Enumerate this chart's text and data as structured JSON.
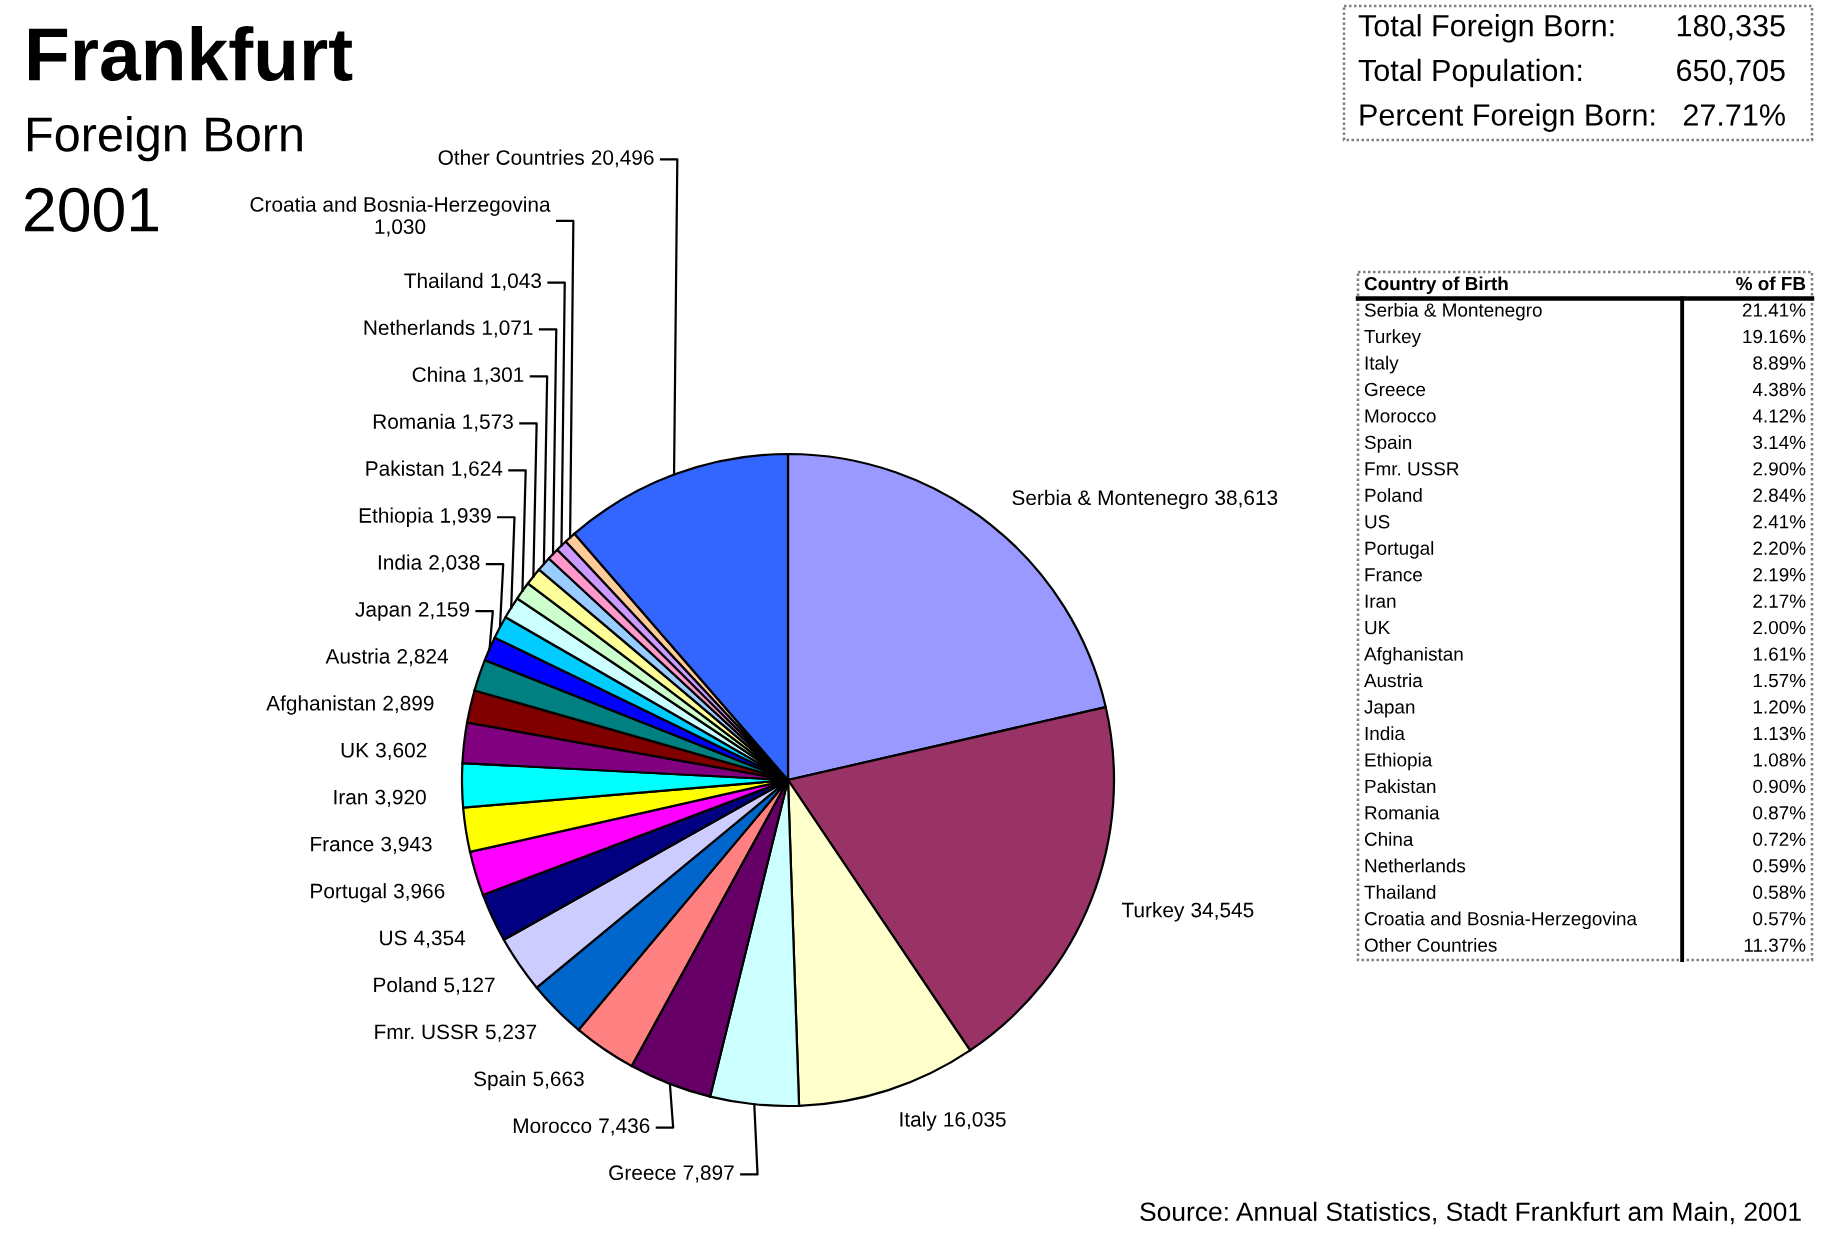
{
  "chart_data": [
    {
      "type": "pie",
      "title": "Frankfurt",
      "subtitle": "Foreign Born",
      "annotations": [
        "2001",
        "Source: Annual Statistics, Stadt Frankfurt am Main, 2001"
      ],
      "categories": [
        "Serbia & Montenegro",
        "Turkey",
        "Italy",
        "Greece",
        "Morocco",
        "Spain",
        "Fmr. USSR",
        "Poland",
        "US",
        "Portugal",
        "France",
        "Iran",
        "UK",
        "Afghanistan",
        "Austria",
        "Japan",
        "India",
        "Ethiopia",
        "Pakistan",
        "Romania",
        "China",
        "Netherlands",
        "Thailand",
        "Croatia and Bosnia-Herzegovina",
        "Other Countries"
      ],
      "values": [
        38613,
        34545,
        16035,
        7897,
        7436,
        5663,
        5237,
        5127,
        4354,
        3966,
        3943,
        3920,
        3602,
        2899,
        2824,
        2159,
        2038,
        1939,
        1624,
        1573,
        1301,
        1071,
        1043,
        1030,
        20496
      ],
      "value_labels": [
        "38,613",
        "34,545",
        "16,035",
        "7,897",
        "7,436",
        "5,663",
        "5,237",
        "5,127",
        "4,354",
        "3,966",
        "3,943",
        "3,920",
        "3,602",
        "2,899",
        "2,824",
        "2,159",
        "2,038",
        "1,939",
        "1,624",
        "1,573",
        "1,301",
        "1,071",
        "1,043",
        "1,030",
        "20,496"
      ],
      "colors": [
        "#9999ff",
        "#993366",
        "#ffffcc",
        "#ccffff",
        "#660066",
        "#ff8080",
        "#0066cc",
        "#ccccff",
        "#000080",
        "#ff00ff",
        "#ffff00",
        "#00ffff",
        "#800080",
        "#800000",
        "#008080",
        "#0000ff",
        "#00ccff",
        "#ccffff",
        "#ccffcc",
        "#ffff99",
        "#99ccff",
        "#ff99cc",
        "#cc99ff",
        "#ffcc99",
        "#3366ff"
      ]
    },
    {
      "type": "other",
      "annotations": [
        "Total Foreign Born:",
        "180,335",
        "Total Population:",
        "650,705",
        "Percent Foreign Born:",
        "27.71%"
      ]
    },
    {
      "type": "other",
      "xlabel": "Country of Birth",
      "ylabel": "% of FB",
      "categories": [
        "Serbia & Montenegro",
        "Turkey",
        "Italy",
        "Greece",
        "Morocco",
        "Spain",
        "Fmr. USSR",
        "Poland",
        "US",
        "Portugal",
        "France",
        "Iran",
        "UK",
        "Afghanistan",
        "Austria",
        "Japan",
        "India",
        "Ethiopia",
        "Pakistan",
        "Romania",
        "China",
        "Netherlands",
        "Thailand",
        "Croatia and Bosnia-Herzegovina",
        "Other Countries"
      ],
      "values": [
        21.41,
        19.16,
        8.89,
        4.38,
        4.12,
        3.14,
        2.9,
        2.84,
        2.41,
        2.2,
        2.19,
        2.17,
        2.0,
        1.61,
        1.57,
        1.2,
        1.13,
        1.08,
        0.9,
        0.87,
        0.72,
        0.59,
        0.58,
        0.57,
        11.37
      ],
      "value_labels": [
        "21.41%",
        "19.16%",
        "8.89%",
        "4.38%",
        "4.12%",
        "3.14%",
        "2.90%",
        "2.84%",
        "2.41%",
        "2.20%",
        "2.19%",
        "2.17%",
        "2.00%",
        "1.61%",
        "1.57%",
        "1.20%",
        "1.13%",
        "1.08%",
        "0.90%",
        "0.87%",
        "0.72%",
        "0.59%",
        "0.58%",
        "0.57%",
        "11.37%"
      ]
    }
  ]
}
